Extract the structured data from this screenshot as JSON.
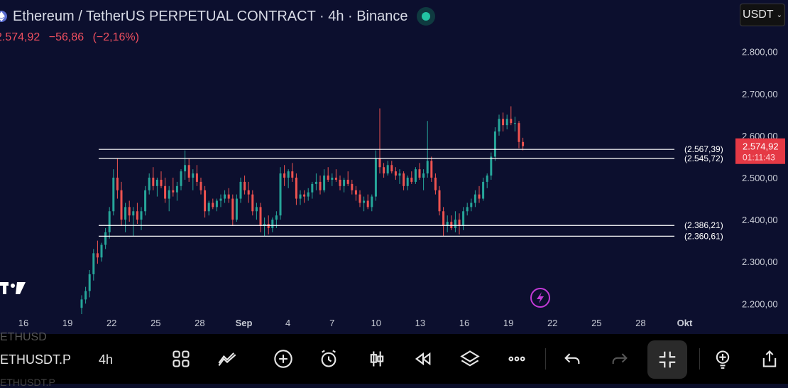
{
  "header": {
    "title": "Ethereum / TetherUS PERPETUAL CONTRACT · 4h · Binance",
    "price": "2.574,92",
    "change": "−56,86",
    "change_pct": "(−2,16%)",
    "currency": "USDT"
  },
  "toolbar": {
    "symbol": "ETHUSDT.P",
    "symbol_above": "ETHUSD",
    "symbol_below": "ETHUSDT.P",
    "interval": "4h"
  },
  "chart_data": {
    "type": "candlestick",
    "y_ticks": [
      "2.800,00",
      "2.700,00",
      "2.600,00",
      "2.500,00",
      "2.400,00",
      "2.300,00",
      "2.200,00"
    ],
    "y_tick_values": [
      2800,
      2700,
      2600,
      2500,
      2400,
      2300,
      2200
    ],
    "ylim": [
      2170,
      2830
    ],
    "x_ticks": [
      "16",
      "19",
      "22",
      "25",
      "28",
      "Sep",
      "4",
      "7",
      "10",
      "13",
      "16",
      "19",
      "22",
      "25",
      "28",
      "Okt"
    ],
    "horizontal_levels": [
      {
        "value": 2567.39,
        "label": "(2.567,39)"
      },
      {
        "value": 2545.72,
        "label": "(2.545,72)"
      },
      {
        "value": 2386.21,
        "label": "(2.386,21)"
      },
      {
        "value": 2360.61,
        "label": "(2.360,61)"
      }
    ],
    "last_price": {
      "value": 2574.92,
      "label": "2.574,92",
      "countdown": "01:11:43"
    },
    "colors": {
      "up": "#26a69a",
      "down": "#ef5350",
      "level": "#ffffff",
      "background": "#0c0f2e"
    },
    "candles": [
      {
        "o": 2190,
        "h": 2220,
        "l": 2175,
        "c": 2210
      },
      {
        "o": 2210,
        "h": 2240,
        "l": 2200,
        "c": 2230
      },
      {
        "o": 2230,
        "h": 2280,
        "l": 2215,
        "c": 2270
      },
      {
        "o": 2270,
        "h": 2330,
        "l": 2255,
        "c": 2320
      },
      {
        "o": 2320,
        "h": 2350,
        "l": 2295,
        "c": 2310
      },
      {
        "o": 2310,
        "h": 2345,
        "l": 2300,
        "c": 2340
      },
      {
        "o": 2340,
        "h": 2380,
        "l": 2330,
        "c": 2370
      },
      {
        "o": 2370,
        "h": 2430,
        "l": 2355,
        "c": 2420
      },
      {
        "o": 2420,
        "h": 2520,
        "l": 2410,
        "c": 2500
      },
      {
        "o": 2500,
        "h": 2545,
        "l": 2450,
        "c": 2470
      },
      {
        "o": 2470,
        "h": 2490,
        "l": 2385,
        "c": 2400
      },
      {
        "o": 2400,
        "h": 2440,
        "l": 2370,
        "c": 2430
      },
      {
        "o": 2430,
        "h": 2445,
        "l": 2395,
        "c": 2410
      },
      {
        "o": 2410,
        "h": 2430,
        "l": 2360,
        "c": 2420
      },
      {
        "o": 2420,
        "h": 2440,
        "l": 2390,
        "c": 2400
      },
      {
        "o": 2400,
        "h": 2430,
        "l": 2375,
        "c": 2420
      },
      {
        "o": 2420,
        "h": 2480,
        "l": 2410,
        "c": 2470
      },
      {
        "o": 2470,
        "h": 2510,
        "l": 2460,
        "c": 2500
      },
      {
        "o": 2500,
        "h": 2525,
        "l": 2470,
        "c": 2480
      },
      {
        "o": 2480,
        "h": 2500,
        "l": 2455,
        "c": 2495
      },
      {
        "o": 2495,
        "h": 2515,
        "l": 2475,
        "c": 2480
      },
      {
        "o": 2480,
        "h": 2500,
        "l": 2440,
        "c": 2450
      },
      {
        "o": 2450,
        "h": 2480,
        "l": 2420,
        "c": 2470
      },
      {
        "o": 2470,
        "h": 2500,
        "l": 2455,
        "c": 2465
      },
      {
        "o": 2465,
        "h": 2490,
        "l": 2445,
        "c": 2480
      },
      {
        "o": 2480,
        "h": 2520,
        "l": 2470,
        "c": 2515
      },
      {
        "o": 2515,
        "h": 2565,
        "l": 2495,
        "c": 2530
      },
      {
        "o": 2530,
        "h": 2545,
        "l": 2490,
        "c": 2500
      },
      {
        "o": 2500,
        "h": 2520,
        "l": 2470,
        "c": 2510
      },
      {
        "o": 2510,
        "h": 2530,
        "l": 2480,
        "c": 2490
      },
      {
        "o": 2490,
        "h": 2500,
        "l": 2460,
        "c": 2470
      },
      {
        "o": 2470,
        "h": 2480,
        "l": 2405,
        "c": 2420
      },
      {
        "o": 2420,
        "h": 2445,
        "l": 2410,
        "c": 2440
      },
      {
        "o": 2440,
        "h": 2450,
        "l": 2425,
        "c": 2430
      },
      {
        "o": 2430,
        "h": 2450,
        "l": 2420,
        "c": 2445
      },
      {
        "o": 2445,
        "h": 2460,
        "l": 2430,
        "c": 2450
      },
      {
        "o": 2450,
        "h": 2470,
        "l": 2440,
        "c": 2460
      },
      {
        "o": 2460,
        "h": 2475,
        "l": 2440,
        "c": 2450
      },
      {
        "o": 2450,
        "h": 2460,
        "l": 2385,
        "c": 2400
      },
      {
        "o": 2400,
        "h": 2460,
        "l": 2395,
        "c": 2450
      },
      {
        "o": 2450,
        "h": 2500,
        "l": 2440,
        "c": 2490
      },
      {
        "o": 2490,
        "h": 2505,
        "l": 2460,
        "c": 2470
      },
      {
        "o": 2470,
        "h": 2490,
        "l": 2440,
        "c": 2460
      },
      {
        "o": 2460,
        "h": 2470,
        "l": 2410,
        "c": 2420
      },
      {
        "o": 2420,
        "h": 2440,
        "l": 2400,
        "c": 2430
      },
      {
        "o": 2430,
        "h": 2440,
        "l": 2370,
        "c": 2385
      },
      {
        "o": 2385,
        "h": 2405,
        "l": 2360,
        "c": 2390
      },
      {
        "o": 2390,
        "h": 2410,
        "l": 2365,
        "c": 2380
      },
      {
        "o": 2380,
        "h": 2405,
        "l": 2370,
        "c": 2400
      },
      {
        "o": 2400,
        "h": 2420,
        "l": 2380,
        "c": 2410
      },
      {
        "o": 2410,
        "h": 2525,
        "l": 2400,
        "c": 2510
      },
      {
        "o": 2510,
        "h": 2530,
        "l": 2480,
        "c": 2500
      },
      {
        "o": 2500,
        "h": 2520,
        "l": 2475,
        "c": 2515
      },
      {
        "o": 2515,
        "h": 2535,
        "l": 2490,
        "c": 2500
      },
      {
        "o": 2500,
        "h": 2510,
        "l": 2435,
        "c": 2450
      },
      {
        "o": 2450,
        "h": 2470,
        "l": 2435,
        "c": 2460
      },
      {
        "o": 2460,
        "h": 2470,
        "l": 2440,
        "c": 2455
      },
      {
        "o": 2455,
        "h": 2475,
        "l": 2445,
        "c": 2465
      },
      {
        "o": 2465,
        "h": 2490,
        "l": 2450,
        "c": 2485
      },
      {
        "o": 2485,
        "h": 2510,
        "l": 2470,
        "c": 2490
      },
      {
        "o": 2490,
        "h": 2505,
        "l": 2460,
        "c": 2470
      },
      {
        "o": 2470,
        "h": 2520,
        "l": 2465,
        "c": 2505
      },
      {
        "o": 2505,
        "h": 2525,
        "l": 2490,
        "c": 2495
      },
      {
        "o": 2495,
        "h": 2510,
        "l": 2480,
        "c": 2500
      },
      {
        "o": 2500,
        "h": 2520,
        "l": 2490,
        "c": 2495
      },
      {
        "o": 2495,
        "h": 2505,
        "l": 2470,
        "c": 2480
      },
      {
        "o": 2480,
        "h": 2500,
        "l": 2465,
        "c": 2495
      },
      {
        "o": 2495,
        "h": 2515,
        "l": 2480,
        "c": 2485
      },
      {
        "o": 2485,
        "h": 2495,
        "l": 2460,
        "c": 2470
      },
      {
        "o": 2470,
        "h": 2480,
        "l": 2445,
        "c": 2460
      },
      {
        "o": 2460,
        "h": 2470,
        "l": 2430,
        "c": 2440
      },
      {
        "o": 2440,
        "h": 2455,
        "l": 2420,
        "c": 2445
      },
      {
        "o": 2445,
        "h": 2460,
        "l": 2425,
        "c": 2430
      },
      {
        "o": 2430,
        "h": 2460,
        "l": 2420,
        "c": 2455
      },
      {
        "o": 2455,
        "h": 2565,
        "l": 2445,
        "c": 2545
      },
      {
        "o": 2545,
        "h": 2665,
        "l": 2510,
        "c": 2525
      },
      {
        "o": 2525,
        "h": 2535,
        "l": 2500,
        "c": 2510
      },
      {
        "o": 2510,
        "h": 2540,
        "l": 2505,
        "c": 2530
      },
      {
        "o": 2530,
        "h": 2540,
        "l": 2510,
        "c": 2515
      },
      {
        "o": 2515,
        "h": 2525,
        "l": 2495,
        "c": 2505
      },
      {
        "o": 2505,
        "h": 2520,
        "l": 2485,
        "c": 2510
      },
      {
        "o": 2510,
        "h": 2515,
        "l": 2470,
        "c": 2480
      },
      {
        "o": 2480,
        "h": 2505,
        "l": 2470,
        "c": 2500
      },
      {
        "o": 2500,
        "h": 2515,
        "l": 2485,
        "c": 2490
      },
      {
        "o": 2490,
        "h": 2525,
        "l": 2485,
        "c": 2520
      },
      {
        "o": 2520,
        "h": 2535,
        "l": 2495,
        "c": 2500
      },
      {
        "o": 2500,
        "h": 2520,
        "l": 2470,
        "c": 2510
      },
      {
        "o": 2510,
        "h": 2635,
        "l": 2500,
        "c": 2540
      },
      {
        "o": 2540,
        "h": 2550,
        "l": 2490,
        "c": 2500
      },
      {
        "o": 2500,
        "h": 2510,
        "l": 2460,
        "c": 2470
      },
      {
        "o": 2470,
        "h": 2480,
        "l": 2410,
        "c": 2420
      },
      {
        "o": 2420,
        "h": 2430,
        "l": 2360,
        "c": 2385
      },
      {
        "o": 2385,
        "h": 2410,
        "l": 2370,
        "c": 2395
      },
      {
        "o": 2395,
        "h": 2410,
        "l": 2375,
        "c": 2380
      },
      {
        "o": 2380,
        "h": 2420,
        "l": 2370,
        "c": 2400
      },
      {
        "o": 2400,
        "h": 2415,
        "l": 2365,
        "c": 2385
      },
      {
        "o": 2385,
        "h": 2430,
        "l": 2375,
        "c": 2420
      },
      {
        "o": 2420,
        "h": 2440,
        "l": 2410,
        "c": 2430
      },
      {
        "o": 2430,
        "h": 2450,
        "l": 2420,
        "c": 2440
      },
      {
        "o": 2440,
        "h": 2470,
        "l": 2430,
        "c": 2460
      },
      {
        "o": 2460,
        "h": 2480,
        "l": 2440,
        "c": 2450
      },
      {
        "o": 2450,
        "h": 2500,
        "l": 2445,
        "c": 2490
      },
      {
        "o": 2490,
        "h": 2510,
        "l": 2475,
        "c": 2505
      },
      {
        "o": 2505,
        "h": 2560,
        "l": 2495,
        "c": 2550
      },
      {
        "o": 2550,
        "h": 2620,
        "l": 2540,
        "c": 2610
      },
      {
        "o": 2610,
        "h": 2650,
        "l": 2600,
        "c": 2640
      },
      {
        "o": 2640,
        "h": 2655,
        "l": 2610,
        "c": 2625
      },
      {
        "o": 2625,
        "h": 2650,
        "l": 2615,
        "c": 2640
      },
      {
        "o": 2640,
        "h": 2670,
        "l": 2625,
        "c": 2630
      },
      {
        "o": 2630,
        "h": 2645,
        "l": 2610,
        "c": 2630
      },
      {
        "o": 2630,
        "h": 2635,
        "l": 2570,
        "c": 2585
      },
      {
        "o": 2585,
        "h": 2595,
        "l": 2565,
        "c": 2575
      }
    ]
  }
}
